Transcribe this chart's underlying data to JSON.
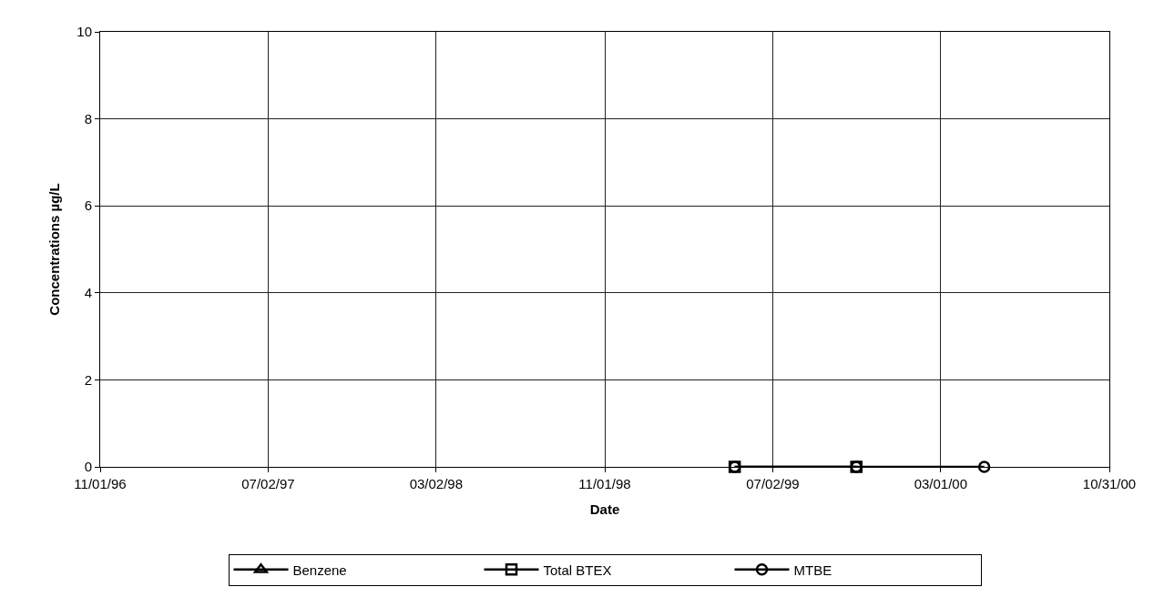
{
  "chart_data": {
    "type": "line",
    "xlabel": "Date",
    "ylabel": "Concentrations µg/L",
    "x": [
      "1999-05-08",
      "1999-10-31",
      "2000-05-03"
    ],
    "series": [
      {
        "name": "Benzene",
        "color": "#000000",
        "marker": "triangle",
        "values": [
          null,
          null,
          null
        ]
      },
      {
        "name": "Total BTEX",
        "color": "#000000",
        "marker": "square",
        "values": [
          0,
          0,
          null
        ]
      },
      {
        "name": "MTBE",
        "color": "#000000",
        "marker": "circle",
        "values": [
          0,
          0,
          0
        ]
      }
    ],
    "xlim": [
      "1996-11-01",
      "2000-10-31"
    ],
    "xticks": [
      {
        "value": "1996-11-01",
        "label": "11/01/96"
      },
      {
        "value": "1997-07-02",
        "label": "07/02/97"
      },
      {
        "value": "1998-03-02",
        "label": "03/02/98"
      },
      {
        "value": "1998-11-01",
        "label": "11/01/98"
      },
      {
        "value": "1999-07-02",
        "label": "07/02/99"
      },
      {
        "value": "2000-03-01",
        "label": "03/01/00"
      },
      {
        "value": "2000-10-31",
        "label": "10/31/00"
      }
    ],
    "ylim": [
      0,
      10
    ],
    "yticks": [
      0,
      2,
      4,
      6,
      8,
      10
    ],
    "grid": true,
    "legend": "bottom",
    "line_style": "solid"
  }
}
